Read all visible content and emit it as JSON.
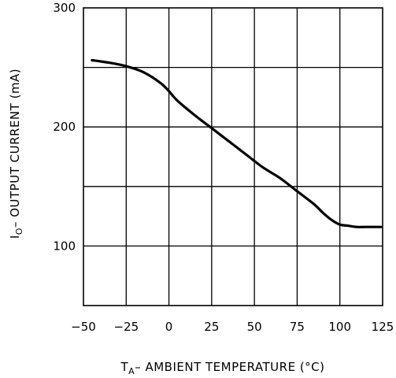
{
  "chart_data": {
    "type": "line",
    "title": "",
    "xlabel": {
      "symbol": "T",
      "subscript": "A",
      "text": "– AMBIENT TEMPERATURE (°C)"
    },
    "ylabel": {
      "symbol": "I",
      "subscript": "O",
      "text": "– OUTPUT CURRENT (mA)"
    },
    "xlim": [
      -50,
      125
    ],
    "ylim": [
      50,
      300
    ],
    "x_ticks": [
      -50,
      -25,
      0,
      25,
      50,
      75,
      100,
      125
    ],
    "x_tick_labels": [
      "−50",
      "−25",
      "0",
      "25",
      "50",
      "75",
      "100",
      "125"
    ],
    "y_ticks": [
      100,
      200,
      300
    ],
    "y_tick_labels": [
      "100",
      "200",
      "300"
    ],
    "y_gridlines": [
      100,
      150,
      200,
      250
    ],
    "grid": true,
    "series": [
      {
        "x": [
          -45,
          -35,
          -25,
          -15,
          -5,
          0,
          5,
          15,
          25,
          35,
          45,
          55,
          65,
          75,
          85,
          90,
          95,
          100,
          105,
          110,
          115,
          120,
          124
        ],
        "y": [
          256,
          254,
          251,
          246,
          237,
          230,
          222,
          210,
          199,
          188,
          177,
          166,
          157,
          146,
          135,
          128,
          122,
          118,
          117,
          116,
          116,
          116,
          116
        ]
      }
    ]
  }
}
